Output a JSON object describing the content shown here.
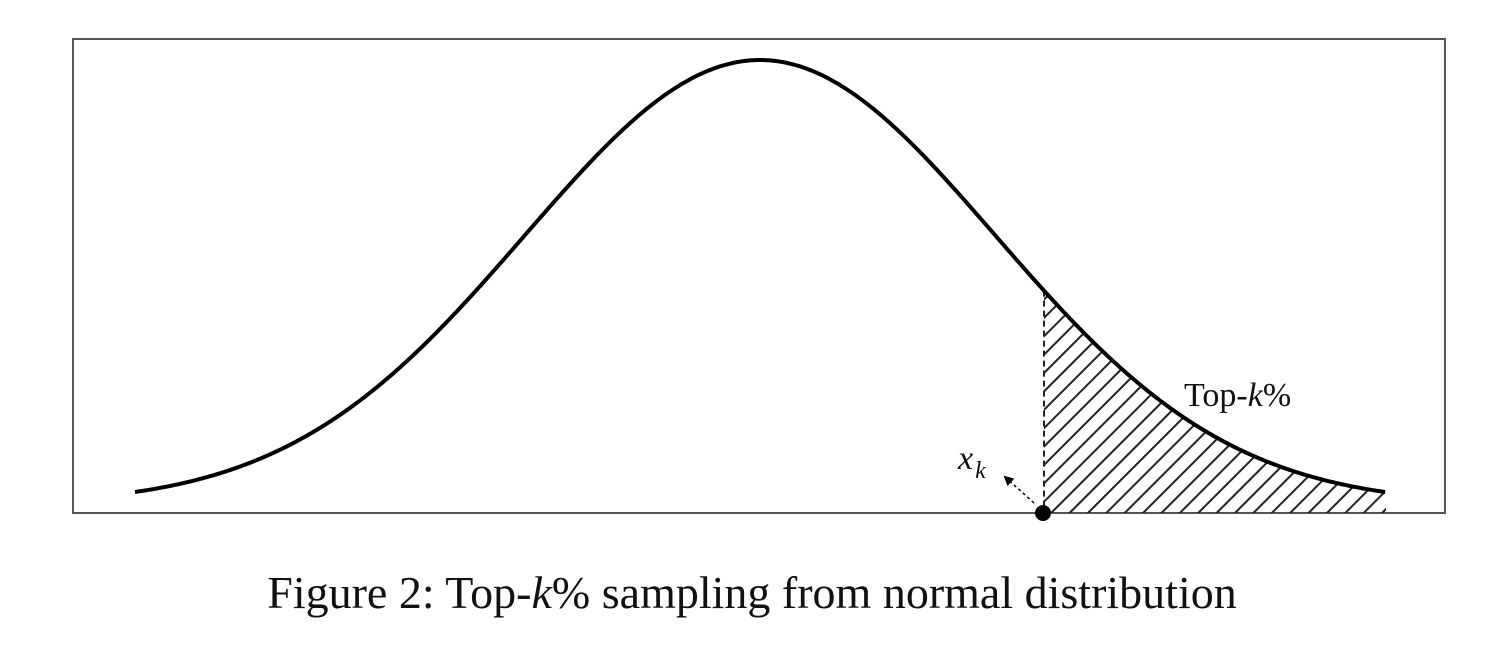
{
  "diagram": {
    "region_label": {
      "prefix": "Top-",
      "var": "k",
      "suffix": "%"
    },
    "threshold_label": {
      "main": "x",
      "sub": "k"
    },
    "colors": {
      "curve": "#000000",
      "frame": "#555555",
      "hatch": "#222222",
      "background": "#ffffff"
    }
  },
  "caption": {
    "prefix": "Figure 2: Top-",
    "var": "k",
    "percent": "%",
    "rest": " sampling from normal distribution"
  }
}
